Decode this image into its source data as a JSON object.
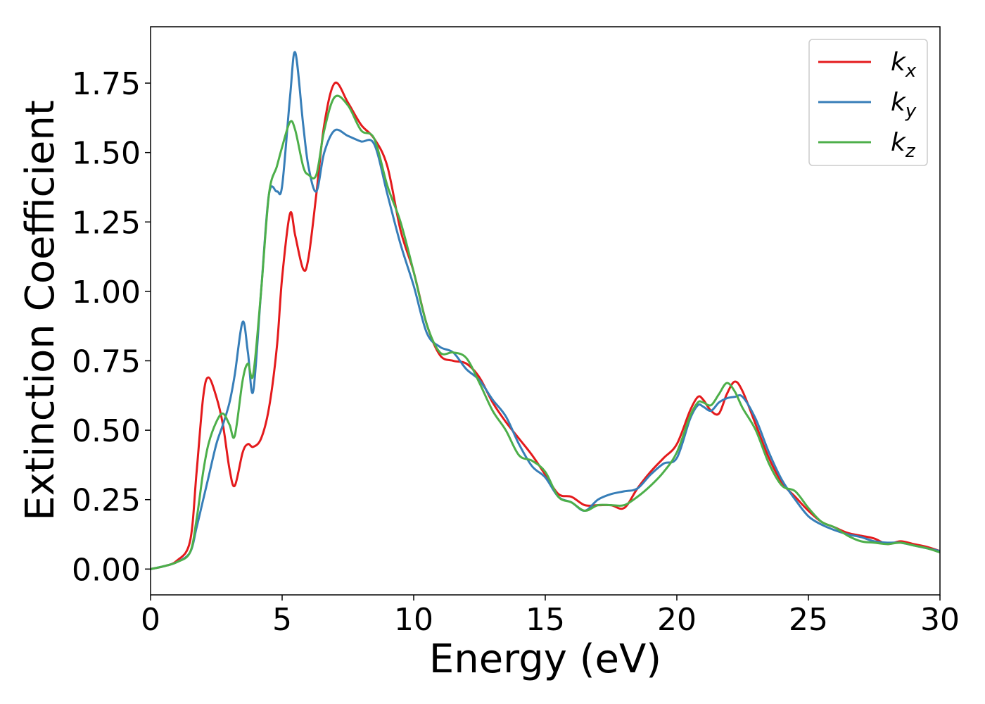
{
  "chart_data": {
    "type": "line",
    "xlabel": "Energy (eV)",
    "ylabel": "Extinction Coefficient",
    "x": [
      0,
      0.5,
      1,
      1.5,
      1.75,
      2,
      2.2,
      2.5,
      2.75,
      3,
      3.2,
      3.5,
      3.7,
      3.9,
      4.2,
      4.5,
      4.8,
      5,
      5.3,
      5.5,
      5.8,
      6,
      6.3,
      6.6,
      7,
      7.5,
      8,
      8.5,
      9,
      9.5,
      10,
      10.5,
      11,
      11.5,
      12,
      12.5,
      13,
      13.5,
      14,
      14.5,
      15,
      15.5,
      16,
      16.5,
      17,
      17.5,
      18,
      18.5,
      19,
      19.5,
      20,
      20.5,
      20.8,
      21,
      21.3,
      21.6,
      21.9,
      22.2,
      22.5,
      23,
      23.5,
      24,
      24.5,
      25,
      25.5,
      26,
      26.5,
      27,
      27.5,
      28,
      28.5,
      29,
      29.5,
      30
    ],
    "series": [
      {
        "name": "kx",
        "color": "#e41a1c",
        "values": [
          0,
          0.01,
          0.03,
          0.1,
          0.35,
          0.62,
          0.69,
          0.62,
          0.52,
          0.36,
          0.3,
          0.42,
          0.45,
          0.44,
          0.47,
          0.58,
          0.8,
          1.05,
          1.28,
          1.2,
          1.08,
          1.12,
          1.35,
          1.6,
          1.75,
          1.68,
          1.6,
          1.55,
          1.45,
          1.22,
          1.07,
          0.88,
          0.77,
          0.75,
          0.74,
          0.69,
          0.6,
          0.53,
          0.47,
          0.41,
          0.34,
          0.27,
          0.26,
          0.23,
          0.23,
          0.23,
          0.22,
          0.29,
          0.35,
          0.4,
          0.45,
          0.57,
          0.62,
          0.61,
          0.57,
          0.56,
          0.63,
          0.675,
          0.64,
          0.52,
          0.4,
          0.31,
          0.26,
          0.21,
          0.17,
          0.15,
          0.13,
          0.12,
          0.11,
          0.09,
          0.1,
          0.09,
          0.08,
          0.065
        ]
      },
      {
        "name": "ky",
        "color": "#377eb8",
        "values": [
          0,
          0.01,
          0.025,
          0.06,
          0.15,
          0.25,
          0.33,
          0.45,
          0.52,
          0.6,
          0.7,
          0.89,
          0.78,
          0.64,
          1.0,
          1.35,
          1.36,
          1.38,
          1.7,
          1.86,
          1.6,
          1.45,
          1.36,
          1.5,
          1.58,
          1.56,
          1.54,
          1.53,
          1.35,
          1.17,
          1.02,
          0.85,
          0.8,
          0.78,
          0.72,
          0.68,
          0.61,
          0.55,
          0.45,
          0.37,
          0.33,
          0.26,
          0.24,
          0.21,
          0.25,
          0.27,
          0.28,
          0.29,
          0.34,
          0.38,
          0.4,
          0.54,
          0.59,
          0.585,
          0.57,
          0.6,
          0.615,
          0.62,
          0.62,
          0.54,
          0.42,
          0.32,
          0.25,
          0.19,
          0.16,
          0.14,
          0.125,
          0.115,
          0.1,
          0.095,
          0.095,
          0.085,
          0.075,
          0.065
        ]
      },
      {
        "name": "kz",
        "color": "#4daf4a",
        "values": [
          0,
          0.01,
          0.025,
          0.06,
          0.18,
          0.35,
          0.45,
          0.53,
          0.56,
          0.52,
          0.48,
          0.68,
          0.74,
          0.7,
          1.0,
          1.35,
          1.45,
          1.52,
          1.61,
          1.58,
          1.45,
          1.42,
          1.42,
          1.58,
          1.7,
          1.67,
          1.58,
          1.55,
          1.38,
          1.25,
          1.07,
          0.88,
          0.78,
          0.78,
          0.76,
          0.67,
          0.57,
          0.5,
          0.41,
          0.39,
          0.35,
          0.26,
          0.24,
          0.21,
          0.23,
          0.23,
          0.23,
          0.26,
          0.3,
          0.35,
          0.42,
          0.55,
          0.6,
          0.6,
          0.59,
          0.63,
          0.67,
          0.64,
          0.58,
          0.5,
          0.38,
          0.3,
          0.28,
          0.22,
          0.17,
          0.15,
          0.12,
          0.1,
          0.095,
          0.09,
          0.095,
          0.085,
          0.075,
          0.06
        ]
      }
    ],
    "xlim": [
      0,
      30
    ],
    "xticks": [
      0,
      5,
      10,
      15,
      20,
      25,
      30
    ],
    "ylim": [
      -0.093,
      1.953
    ],
    "yticks": [
      {
        "value": 0,
        "label": "0.00"
      },
      {
        "value": 0.25,
        "label": "0.25"
      },
      {
        "value": 0.5,
        "label": "0.50"
      },
      {
        "value": 0.75,
        "label": "0.75"
      },
      {
        "value": 1,
        "label": "1.00"
      },
      {
        "value": 1.25,
        "label": "1.25"
      },
      {
        "value": 1.5,
        "label": "1.50"
      },
      {
        "value": 1.75,
        "label": "1.75"
      }
    ],
    "legend": "upper right"
  }
}
